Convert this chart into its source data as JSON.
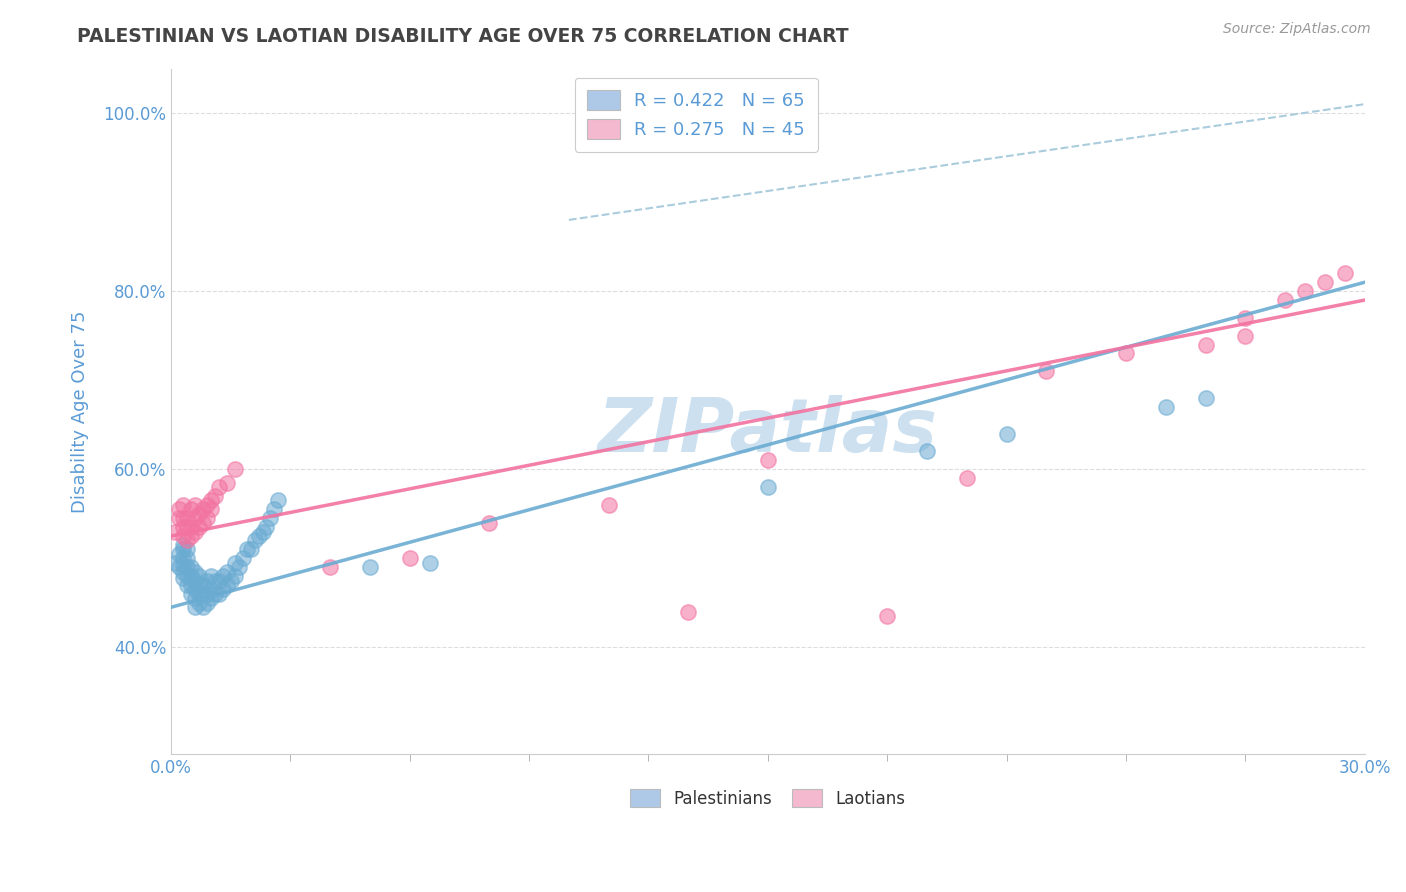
{
  "title": "PALESTINIAN VS LAOTIAN DISABILITY AGE OVER 75 CORRELATION CHART",
  "source_text": "Source: ZipAtlas.com",
  "ylabel": "Disability Age Over 75",
  "xlim": [
    0.0,
    0.3
  ],
  "ylim": [
    0.28,
    1.05
  ],
  "ytick_vals": [
    0.4,
    0.6,
    0.8,
    1.0
  ],
  "ytick_labels": [
    "40.0%",
    "60.0%",
    "80.0%",
    "100.0%"
  ],
  "legend_label_blue": "R = 0.422   N = 65",
  "legend_label_pink": "R = 0.275   N = 45",
  "blue_color": "#6aabd2",
  "pink_color": "#f272a0",
  "ref_line_color": "#aaccdd",
  "background_color": "#ffffff",
  "grid_color": "#dddddd",
  "title_color": "#444444",
  "axis_label_color": "#5b9bd5",
  "tick_label_color": "#5b9bd5",
  "watermark_text": "ZIPatlas",
  "watermark_color": "#cce0f0",
  "legend_rect_color_blue": "#aec9e8",
  "legend_rect_color_pink": "#f4b8cf",
  "blue_scatter_x": [
    0.001,
    0.002,
    0.002,
    0.003,
    0.003,
    0.003,
    0.003,
    0.003,
    0.003,
    0.004,
    0.004,
    0.004,
    0.004,
    0.004,
    0.005,
    0.005,
    0.005,
    0.005,
    0.006,
    0.006,
    0.006,
    0.006,
    0.006,
    0.007,
    0.007,
    0.007,
    0.007,
    0.008,
    0.008,
    0.008,
    0.009,
    0.009,
    0.009,
    0.01,
    0.01,
    0.01,
    0.011,
    0.011,
    0.012,
    0.012,
    0.013,
    0.013,
    0.014,
    0.014,
    0.015,
    0.016,
    0.016,
    0.017,
    0.018,
    0.019,
    0.02,
    0.021,
    0.022,
    0.023,
    0.024,
    0.025,
    0.026,
    0.027,
    0.05,
    0.065,
    0.15,
    0.19,
    0.21,
    0.25,
    0.26
  ],
  "blue_scatter_y": [
    0.495,
    0.49,
    0.505,
    0.478,
    0.485,
    0.492,
    0.5,
    0.51,
    0.515,
    0.47,
    0.48,
    0.49,
    0.5,
    0.51,
    0.46,
    0.47,
    0.48,
    0.49,
    0.445,
    0.455,
    0.465,
    0.475,
    0.485,
    0.45,
    0.46,
    0.47,
    0.48,
    0.445,
    0.46,
    0.47,
    0.45,
    0.46,
    0.475,
    0.455,
    0.465,
    0.48,
    0.46,
    0.475,
    0.46,
    0.475,
    0.465,
    0.48,
    0.47,
    0.485,
    0.475,
    0.48,
    0.495,
    0.49,
    0.5,
    0.51,
    0.51,
    0.52,
    0.525,
    0.53,
    0.535,
    0.545,
    0.555,
    0.565,
    0.49,
    0.495,
    0.58,
    0.62,
    0.64,
    0.67,
    0.68
  ],
  "pink_scatter_x": [
    0.001,
    0.002,
    0.002,
    0.003,
    0.003,
    0.003,
    0.003,
    0.004,
    0.004,
    0.004,
    0.005,
    0.005,
    0.005,
    0.006,
    0.006,
    0.006,
    0.007,
    0.007,
    0.008,
    0.008,
    0.009,
    0.009,
    0.01,
    0.01,
    0.011,
    0.012,
    0.014,
    0.016,
    0.04,
    0.06,
    0.08,
    0.11,
    0.13,
    0.15,
    0.18,
    0.2,
    0.22,
    0.24,
    0.26,
    0.27,
    0.27,
    0.28,
    0.285,
    0.29,
    0.295
  ],
  "pink_scatter_y": [
    0.53,
    0.545,
    0.555,
    0.525,
    0.535,
    0.545,
    0.56,
    0.52,
    0.535,
    0.545,
    0.525,
    0.535,
    0.555,
    0.53,
    0.545,
    0.56,
    0.535,
    0.55,
    0.54,
    0.555,
    0.545,
    0.56,
    0.555,
    0.565,
    0.57,
    0.58,
    0.585,
    0.6,
    0.49,
    0.5,
    0.54,
    0.56,
    0.44,
    0.61,
    0.435,
    0.59,
    0.71,
    0.73,
    0.74,
    0.75,
    0.77,
    0.79,
    0.8,
    0.81,
    0.82
  ],
  "blue_line_x": [
    0.0,
    0.3
  ],
  "blue_line_y": [
    0.445,
    0.81
  ],
  "pink_line_x": [
    0.0,
    0.3
  ],
  "pink_line_y": [
    0.525,
    0.79
  ],
  "ref_line_x": [
    0.1,
    0.3
  ],
  "ref_line_y": [
    0.88,
    1.01
  ]
}
